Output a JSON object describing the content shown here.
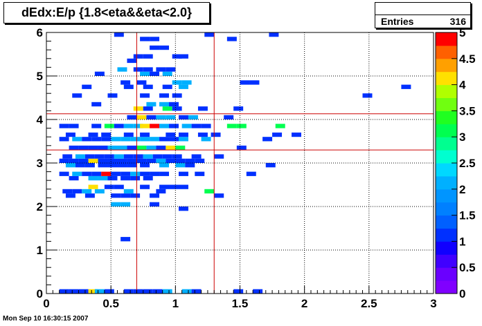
{
  "chart_data": {
    "type": "heatmap",
    "title": "dEdx:E/p {1.8<eta&&eta<2.0}",
    "stats": {
      "label": "Entries",
      "value": "316"
    },
    "timestamp": "Mon Sep 10 16:30:15 2007",
    "x_range": [
      0,
      3
    ],
    "y_range": [
      0,
      6
    ],
    "x_ticks": [
      "0",
      "0.5",
      "1",
      "1.5",
      "2",
      "2.5",
      "3"
    ],
    "x_tick_values": [
      0,
      0.5,
      1,
      1.5,
      2,
      2.5,
      3
    ],
    "y_ticks": [
      "0",
      "1",
      "2",
      "3",
      "4",
      "5",
      "6"
    ],
    "y_tick_values": [
      0,
      1,
      2,
      3,
      4,
      5,
      6
    ],
    "grid": true,
    "bin_size": {
      "x": 0.075,
      "y": 0.1
    },
    "cut_lines": {
      "vertical": [
        0.7,
        1.3
      ],
      "horizontal": [
        3.3,
        4.13
      ]
    },
    "colorbar": {
      "range": [
        0,
        5
      ],
      "ticks": [
        "0",
        "0.5",
        "1",
        "1.5",
        "2",
        "2.5",
        "3",
        "3.5",
        "4",
        "4.5",
        "5"
      ],
      "tick_values": [
        0,
        0.5,
        1,
        1.5,
        2,
        2.5,
        3,
        3.5,
        4,
        4.5,
        5
      ],
      "levels": 20
    },
    "palette": [
      "#8000ff",
      "#6a00ff",
      "#4000ff",
      "#1000ff",
      "#0030ff",
      "#0060ff",
      "#0080ff",
      "#0095ff",
      "#00b0ff",
      "#00d8ff",
      "#00ffd0",
      "#00ff90",
      "#00ff50",
      "#20ff20",
      "#70ff10",
      "#b0ff00",
      "#ffe000",
      "#ffa000",
      "#ff6000",
      "#ff0000"
    ],
    "grid_color": "#000000",
    "cut_line_color": "#cc0000",
    "bins": [
      [
        0.1,
        0,
        1
      ],
      [
        0.175,
        0,
        1
      ],
      [
        0.25,
        0,
        1
      ],
      [
        0.325,
        0,
        4
      ],
      [
        0.375,
        0,
        2
      ],
      [
        0.45,
        0,
        1
      ],
      [
        0.6,
        0,
        1
      ],
      [
        0.675,
        0,
        1
      ],
      [
        0.75,
        0,
        1
      ],
      [
        0.825,
        0,
        1
      ],
      [
        0.9,
        0,
        2
      ],
      [
        1.05,
        0,
        2
      ],
      [
        1.125,
        0,
        1
      ],
      [
        1.45,
        0,
        1
      ],
      [
        1.6,
        0,
        1
      ],
      [
        0.575,
        1.2,
        1
      ],
      [
        1.025,
        1.9,
        1
      ],
      [
        0.5,
        2,
        2
      ],
      [
        0.575,
        2,
        2
      ],
      [
        0.8,
        2,
        1
      ],
      [
        0.15,
        2.2,
        1
      ],
      [
        0.3,
        2.2,
        1
      ],
      [
        0.5,
        2.2,
        1
      ],
      [
        0.575,
        2.2,
        1
      ],
      [
        0.65,
        2.2,
        1
      ],
      [
        0.8,
        2.2,
        1
      ],
      [
        1.3,
        2.2,
        1
      ],
      [
        0.125,
        2.3,
        1
      ],
      [
        0.2,
        2.3,
        1
      ],
      [
        0.275,
        2.3,
        2
      ],
      [
        0.375,
        2.3,
        2
      ],
      [
        0.6,
        2.3,
        2
      ],
      [
        0.85,
        2.3,
        1
      ],
      [
        1.225,
        2.3,
        3
      ],
      [
        0.325,
        2.4,
        4
      ],
      [
        0.45,
        2.4,
        1
      ],
      [
        0.525,
        2.4,
        1
      ],
      [
        0.725,
        2.4,
        1
      ],
      [
        0.875,
        2.4,
        1
      ],
      [
        0.95,
        2.4,
        1
      ],
      [
        1.025,
        2.4,
        1
      ],
      [
        0.175,
        2.6,
        1
      ],
      [
        0.325,
        2.6,
        2
      ],
      [
        0.4,
        2.6,
        2
      ],
      [
        0.475,
        2.6,
        1
      ],
      [
        0.575,
        2.6,
        1
      ],
      [
        0.65,
        2.6,
        1
      ],
      [
        0.75,
        2.6,
        1
      ],
      [
        0.1,
        2.7,
        1
      ],
      [
        0.2,
        2.7,
        2
      ],
      [
        0.275,
        2.7,
        1
      ],
      [
        0.35,
        2.7,
        1
      ],
      [
        0.425,
        2.7,
        5
      ],
      [
        0.5,
        2.7,
        1
      ],
      [
        0.575,
        2.7,
        1
      ],
      [
        0.65,
        2.7,
        2
      ],
      [
        0.725,
        2.7,
        1
      ],
      [
        0.8,
        2.7,
        1
      ],
      [
        0.875,
        2.7,
        1
      ],
      [
        1.025,
        2.7,
        1
      ],
      [
        1.15,
        2.7,
        1
      ],
      [
        1.55,
        2.7,
        1
      ],
      [
        0.15,
        2.9,
        2
      ],
      [
        0.225,
        2.9,
        1
      ],
      [
        0.3,
        2.9,
        1
      ],
      [
        0.4,
        2.9,
        1
      ],
      [
        0.475,
        2.9,
        1
      ],
      [
        0.55,
        2.9,
        1
      ],
      [
        0.625,
        2.9,
        1
      ],
      [
        0.725,
        2.9,
        1
      ],
      [
        0.875,
        2.9,
        2
      ],
      [
        1.0,
        2.9,
        2
      ],
      [
        1.075,
        2.9,
        1
      ],
      [
        1.7,
        2.9,
        1
      ],
      [
        0.1,
        3,
        1
      ],
      [
        0.175,
        3,
        1
      ],
      [
        0.25,
        3,
        1
      ],
      [
        0.325,
        3,
        4
      ],
      [
        0.4,
        3,
        1
      ],
      [
        0.475,
        3,
        1
      ],
      [
        0.55,
        3,
        1
      ],
      [
        0.625,
        3,
        1
      ],
      [
        0.7,
        3,
        1
      ],
      [
        0.775,
        3,
        1
      ],
      [
        0.85,
        3,
        2
      ],
      [
        0.925,
        3,
        1
      ],
      [
        1.0,
        3,
        1
      ],
      [
        1.075,
        3,
        1
      ],
      [
        1.15,
        3,
        1
      ],
      [
        0.125,
        3.1,
        1
      ],
      [
        0.225,
        3.1,
        2
      ],
      [
        0.3,
        3.1,
        1
      ],
      [
        0.375,
        3.1,
        1
      ],
      [
        0.45,
        3.1,
        1
      ],
      [
        0.525,
        3.1,
        2
      ],
      [
        0.6,
        3.1,
        1
      ],
      [
        0.675,
        3.1,
        1
      ],
      [
        0.75,
        3.1,
        2
      ],
      [
        0.825,
        3.1,
        1
      ],
      [
        0.9,
        3.1,
        1
      ],
      [
        0.975,
        3.1,
        1
      ],
      [
        1.125,
        3.1,
        1
      ],
      [
        1.3,
        3.1,
        1
      ],
      [
        0.175,
        3.3,
        1
      ],
      [
        0.25,
        3.3,
        1
      ],
      [
        0.325,
        3.3,
        1
      ],
      [
        0.4,
        3.3,
        1
      ],
      [
        0.475,
        3.3,
        2
      ],
      [
        0.55,
        3.3,
        2
      ],
      [
        0.625,
        3.3,
        1
      ],
      [
        0.7,
        3.3,
        3
      ],
      [
        0.775,
        3.3,
        2
      ],
      [
        0.85,
        3.3,
        1
      ],
      [
        0.925,
        3.3,
        4
      ],
      [
        1.0,
        3.3,
        3
      ],
      [
        1.475,
        3.3,
        1
      ],
      [
        0.1,
        3.5,
        1
      ],
      [
        0.2,
        3.5,
        2
      ],
      [
        0.275,
        3.5,
        1
      ],
      [
        0.35,
        3.5,
        1
      ],
      [
        0.425,
        3.5,
        1
      ],
      [
        0.5,
        3.5,
        2
      ],
      [
        0.575,
        3.5,
        2
      ],
      [
        0.65,
        3.5,
        2
      ],
      [
        0.725,
        3.5,
        2
      ],
      [
        0.8,
        3.5,
        2
      ],
      [
        0.875,
        3.5,
        1
      ],
      [
        0.95,
        3.5,
        1
      ],
      [
        1.025,
        3.5,
        2
      ],
      [
        1.2,
        3.5,
        2
      ],
      [
        1.675,
        3.5,
        1
      ],
      [
        0.15,
        3.6,
        1
      ],
      [
        0.325,
        3.6,
        1
      ],
      [
        0.425,
        3.6,
        1
      ],
      [
        0.6,
        3.6,
        1
      ],
      [
        0.725,
        3.6,
        1
      ],
      [
        0.925,
        3.6,
        1
      ],
      [
        1.025,
        3.6,
        1
      ],
      [
        1.175,
        3.6,
        1
      ],
      [
        1.275,
        3.6,
        1
      ],
      [
        1.75,
        3.6,
        1
      ],
      [
        1.9,
        3.6,
        1
      ],
      [
        0.1,
        3.8,
        1
      ],
      [
        0.175,
        3.8,
        1
      ],
      [
        0.35,
        3.8,
        1
      ],
      [
        0.45,
        3.8,
        3
      ],
      [
        0.525,
        3.8,
        1
      ],
      [
        0.6,
        3.8,
        2
      ],
      [
        0.675,
        3.8,
        2
      ],
      [
        0.725,
        3.8,
        4
      ],
      [
        0.8,
        3.8,
        5
      ],
      [
        0.875,
        3.8,
        2
      ],
      [
        0.95,
        3.8,
        1
      ],
      [
        1.05,
        3.8,
        2
      ],
      [
        1.125,
        3.8,
        1
      ],
      [
        1.2,
        3.8,
        1
      ],
      [
        1.4,
        3.8,
        3
      ],
      [
        1.475,
        3.8,
        3
      ],
      [
        1.775,
        3.8,
        3
      ],
      [
        0.625,
        4,
        1
      ],
      [
        0.7,
        4,
        4
      ],
      [
        0.775,
        4,
        1
      ],
      [
        0.85,
        4,
        2
      ],
      [
        0.925,
        4,
        2
      ],
      [
        1.025,
        4,
        1
      ],
      [
        1.1,
        4,
        2
      ],
      [
        1.375,
        4,
        1
      ],
      [
        0.675,
        4.2,
        4
      ],
      [
        0.75,
        4.2,
        1
      ],
      [
        0.9,
        4.2,
        3
      ],
      [
        0.975,
        4.2,
        1
      ],
      [
        1.175,
        4.2,
        1
      ],
      [
        1.45,
        4.2,
        1
      ],
      [
        0.35,
        4.3,
        1
      ],
      [
        0.775,
        4.3,
        2
      ],
      [
        0.875,
        4.3,
        2
      ],
      [
        0.95,
        4.3,
        1
      ],
      [
        0.2,
        4.5,
        1
      ],
      [
        0.475,
        4.5,
        1
      ],
      [
        0.725,
        4.5,
        1
      ],
      [
        0.875,
        4.5,
        1
      ],
      [
        0.975,
        4.5,
        1
      ],
      [
        2.45,
        4.5,
        1
      ],
      [
        0.275,
        4.7,
        1
      ],
      [
        0.6,
        4.7,
        1
      ],
      [
        0.75,
        4.7,
        1
      ],
      [
        0.9,
        4.7,
        1
      ],
      [
        1.025,
        4.7,
        2
      ],
      [
        2.75,
        4.7,
        1
      ],
      [
        0.575,
        4.8,
        1
      ],
      [
        0.7,
        4.8,
        1
      ],
      [
        0.975,
        4.8,
        2
      ],
      [
        1.05,
        4.8,
        2
      ],
      [
        1.5,
        4.8,
        1
      ],
      [
        1.575,
        4.8,
        1
      ],
      [
        0.375,
        5,
        1
      ],
      [
        0.725,
        5,
        2
      ],
      [
        0.8,
        5,
        1
      ],
      [
        0.9,
        5,
        2
      ],
      [
        0.55,
        5.1,
        2
      ],
      [
        0.675,
        5.1,
        1
      ],
      [
        0.75,
        5.1,
        1
      ],
      [
        0.85,
        5.1,
        1
      ],
      [
        0.925,
        5.1,
        1
      ],
      [
        0.625,
        5.3,
        1
      ],
      [
        0.675,
        5.4,
        1
      ],
      [
        0.75,
        5.4,
        1
      ],
      [
        0.975,
        5.4,
        1
      ],
      [
        1.025,
        5.4,
        1
      ],
      [
        0.8,
        5.6,
        1
      ],
      [
        0.875,
        5.6,
        1
      ],
      [
        0.725,
        5.8,
        1
      ],
      [
        0.8,
        5.8,
        1
      ],
      [
        1.4,
        5.8,
        1
      ],
      [
        0.525,
        5.9,
        1
      ],
      [
        1.225,
        5.9,
        1
      ],
      [
        1.725,
        5.9,
        1
      ]
    ]
  }
}
